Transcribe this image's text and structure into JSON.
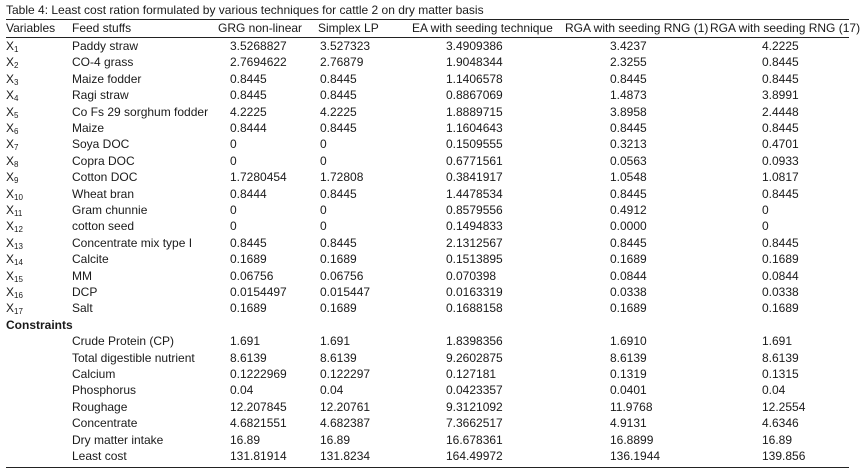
{
  "caption": "Table 4: Least cost ration formulated by various techniques for cattle 2 on dry matter basis",
  "headers": [
    "Variables",
    "Feed stuffs",
    "GRG non-linear",
    "Simplex LP",
    "EA with seeding technique",
    "RGA with seeding RNG (1)",
    "RGA with seeding RNG (17)"
  ],
  "feed_rows": [
    {
      "var": "X",
      "sub": "1",
      "name": "Paddy straw",
      "v": [
        "3.5268827",
        "3.527323",
        "3.4909386",
        "3.4237",
        "4.2225"
      ]
    },
    {
      "var": "X",
      "sub": "2",
      "name": "CO-4 grass",
      "v": [
        "2.7694622",
        "2.76879",
        "1.9048344",
        "2.3255",
        "0.8445"
      ]
    },
    {
      "var": "X",
      "sub": "3",
      "name": "Maize fodder",
      "v": [
        "0.8445",
        "0.8445",
        "1.1406578",
        "0.8445",
        "0.8445"
      ]
    },
    {
      "var": "X",
      "sub": "4",
      "name": "Ragi straw",
      "v": [
        "0.8445",
        "0.8445",
        "0.8867069",
        "1.4873",
        "3.8991"
      ]
    },
    {
      "var": "X",
      "sub": "5",
      "name": "Co Fs 29 sorghum fodder",
      "v": [
        "4.2225",
        "4.2225",
        "1.8889715",
        "3.8958",
        "2.4448"
      ]
    },
    {
      "var": "X",
      "sub": "6",
      "name": "Maize",
      "v": [
        "0.8444",
        "0.8445",
        "1.1604643",
        "0.8445",
        "0.8445"
      ]
    },
    {
      "var": "X",
      "sub": "7",
      "name": "Soya DOC",
      "v": [
        "0",
        "0",
        "0.1509555",
        "0.3213",
        "0.4701"
      ]
    },
    {
      "var": "X",
      "sub": "8",
      "name": "Copra DOC",
      "v": [
        "0",
        "0",
        "0.6771561",
        "0.0563",
        "0.0933"
      ]
    },
    {
      "var": "X",
      "sub": "9",
      "name": "Cotton DOC",
      "v": [
        "1.7280454",
        "1.72808",
        "0.3841917",
        "1.0548",
        "1.0817"
      ]
    },
    {
      "var": "X",
      "sub": "10",
      "name": "Wheat bran",
      "v": [
        "0.8444",
        "0.8445",
        "1.4478534",
        "0.8445",
        "0.8445"
      ]
    },
    {
      "var": "X",
      "sub": "11",
      "name": "Gram chunnie",
      "v": [
        "0",
        "0",
        "0.8579556",
        "0.4912",
        "0"
      ]
    },
    {
      "var": "X",
      "sub": "12",
      "name": "cotton seed",
      "v": [
        "0",
        "0",
        "0.1494833",
        "0.0000",
        "0"
      ]
    },
    {
      "var": "X",
      "sub": "13",
      "name": "Concentrate mix type I",
      "v": [
        "0.8445",
        "0.8445",
        "2.1312567",
        "0.8445",
        "0.8445"
      ]
    },
    {
      "var": "X",
      "sub": "14",
      "name": "Calcite",
      "v": [
        "0.1689",
        "0.1689",
        "0.1513895",
        "0.1689",
        "0.1689"
      ]
    },
    {
      "var": "X",
      "sub": "15",
      "name": "MM",
      "v": [
        "0.06756",
        "0.06756",
        "0.070398",
        "0.0844",
        "0.0844"
      ]
    },
    {
      "var": "X",
      "sub": "16",
      "name": "DCP",
      "v": [
        "0.0154497",
        "0.015447",
        "0.0163319",
        "0.0338",
        "0.0338"
      ]
    },
    {
      "var": "X",
      "sub": "17",
      "name": "Salt",
      "v": [
        "0.1689",
        "0.1689",
        "0.1688158",
        "0.1689",
        "0.1689"
      ]
    }
  ],
  "constraints_label": "Constraints",
  "constraint_rows": [
    {
      "name": "Crude Protein (CP)",
      "v": [
        "1.691",
        "1.691",
        "1.8398356",
        "1.6910",
        "1.691"
      ]
    },
    {
      "name": "Total digestible nutrient",
      "v": [
        "8.6139",
        "8.6139",
        "9.2602875",
        "8.6139",
        "8.6139"
      ]
    },
    {
      "name": "Calcium",
      "v": [
        "0.1222969",
        "0.122297",
        "0.127181",
        "0.1319",
        "0.1315"
      ]
    },
    {
      "name": "Phosphorus",
      "v": [
        "0.04",
        "0.04",
        "0.0423357",
        "0.0401",
        "0.04"
      ]
    },
    {
      "name": "Roughage",
      "v": [
        "12.207845",
        "12.20761",
        "9.3121092",
        "11.9768",
        "12.2554"
      ]
    },
    {
      "name": "Concentrate",
      "v": [
        "4.6821551",
        "4.682387",
        "7.3662517",
        "4.9131",
        "4.6346"
      ]
    },
    {
      "name": "Dry matter intake",
      "v": [
        "16.89",
        "16.89",
        "16.678361",
        "16.8899",
        "16.89"
      ]
    },
    {
      "name": "Least cost",
      "v": [
        "131.81914",
        "131.8234",
        "164.49972",
        "136.1944",
        "139.856"
      ]
    }
  ]
}
